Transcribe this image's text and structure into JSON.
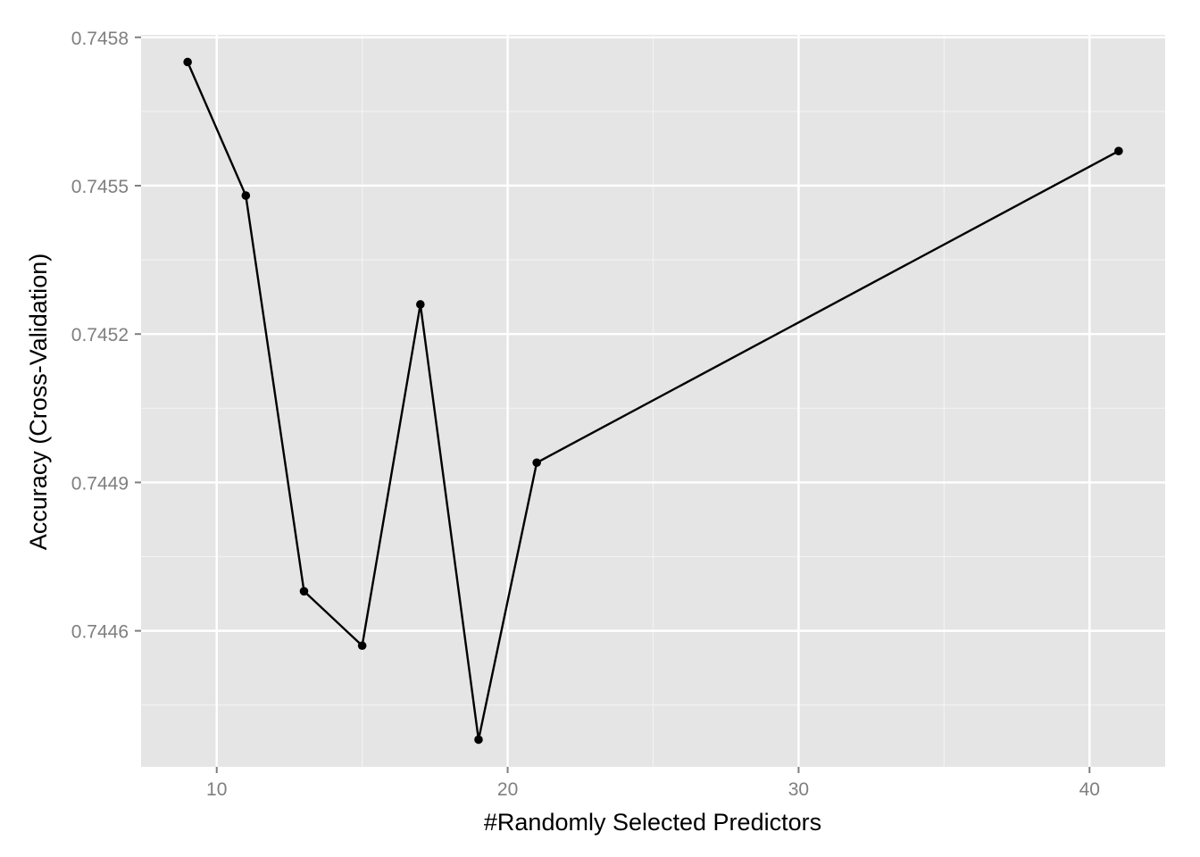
{
  "chart_data": {
    "type": "line",
    "title": "",
    "xlabel": "#Randomly Selected Predictors",
    "ylabel": "Accuracy (Cross-Validation)",
    "x": [
      9,
      11,
      13,
      15,
      17,
      19,
      21,
      41
    ],
    "series": [
      {
        "values": [
          0.74575,
          0.74548,
          0.74468,
          0.74457,
          0.74526,
          0.74438,
          0.74494,
          0.74557
        ]
      }
    ],
    "xlim": [
      7.4,
      42.6
    ],
    "ylim": [
      0.744325,
      0.745805
    ],
    "x_ticks": [
      10,
      20,
      30,
      40
    ],
    "x_tick_labels": [
      "10",
      "20",
      "30",
      "40"
    ],
    "y_ticks": [
      0.7446,
      0.7449,
      0.7452,
      0.7455,
      0.7458
    ],
    "y_tick_labels": [
      "0.7446",
      "0.7449",
      "0.7452",
      "0.7455",
      "0.7458"
    ],
    "grid": true,
    "colors": {
      "panel_background": "#e5e5e5",
      "grid_major": "#ffffff",
      "grid_minor": "#f2f2f2",
      "line": "#000000",
      "point": "#000000",
      "tick_label": "#7f7f7f"
    }
  }
}
